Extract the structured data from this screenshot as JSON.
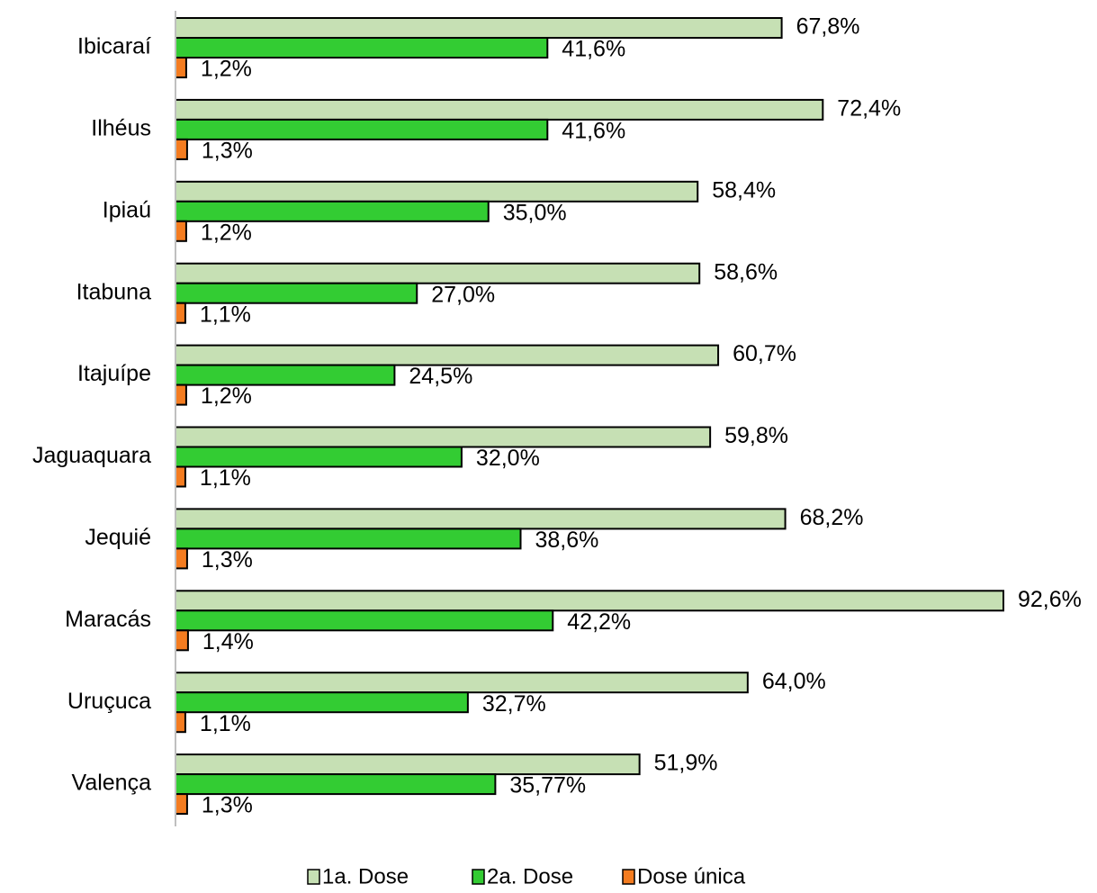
{
  "chart_data": {
    "type": "bar",
    "orientation": "horizontal",
    "categories": [
      "Ibicaraí",
      "Ilhéus",
      "Ipiaú",
      "Itabuna",
      "Itajuípe",
      "Jaguaquara",
      "Jequié",
      "Maracás",
      "Uruçuca",
      "Valença"
    ],
    "series": [
      {
        "name": "1a. Dose",
        "color": "#c6e0b4",
        "values": [
          67.8,
          72.4,
          58.4,
          58.6,
          60.7,
          59.8,
          68.2,
          92.6,
          64.0,
          51.9
        ],
        "value_labels": [
          "67,8%",
          "72,4%",
          "58,4%",
          "58,6%",
          "60,7%",
          "59,8%",
          "68,2%",
          "92,6%",
          "64,0%",
          "51,9%"
        ]
      },
      {
        "name": "2a. Dose",
        "color": "#33cc33",
        "values": [
          41.6,
          41.6,
          35.0,
          27.0,
          24.5,
          32.0,
          38.6,
          42.2,
          32.7,
          35.77
        ],
        "value_labels": [
          "41,6%",
          "41,6%",
          "35,0%",
          "27,0%",
          "24,5%",
          "32,0%",
          "38,6%",
          "42,2%",
          "32,7%",
          "35,77%"
        ]
      },
      {
        "name": "Dose única",
        "color": "#f47c20",
        "values": [
          1.2,
          1.3,
          1.2,
          1.1,
          1.2,
          1.1,
          1.3,
          1.4,
          1.1,
          1.3
        ],
        "value_labels": [
          "1,2%",
          "1,3%",
          "1,2%",
          "1,1%",
          "1,2%",
          "1,1%",
          "1,3%",
          "1,4%",
          "1,1%",
          "1,3%"
        ]
      }
    ],
    "legend": "bottom"
  }
}
